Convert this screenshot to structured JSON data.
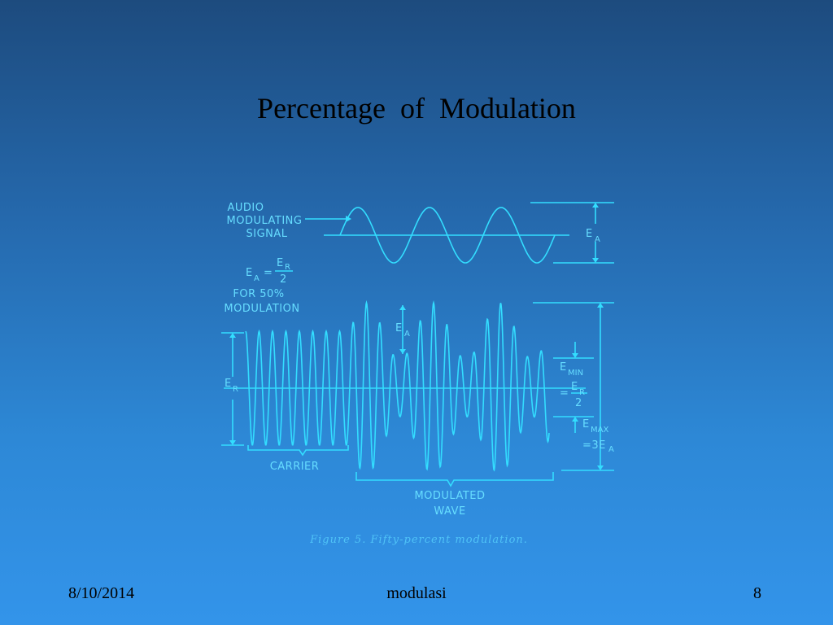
{
  "slide": {
    "title": "Percentage  of  Modulation",
    "footer_date": "8/10/2014",
    "footer_center": "modulasi",
    "slide_number": "8"
  },
  "figure": {
    "audio_label": [
      "AUDIO",
      "MODULATING",
      "SIGNAL"
    ],
    "ea_label": "E",
    "ea_sub": "A",
    "formula_lhs": "E",
    "formula_lhs_sub": "A",
    "formula_eq": "=",
    "formula_num": "E",
    "formula_num_sub": "R",
    "formula_den": "2",
    "for_text": "FOR 50%",
    "modulation_text": "MODULATION",
    "er_label": "E",
    "er_sub": "R",
    "ea_mid_label": "E",
    "ea_mid_sub": "A",
    "emin_label": "E",
    "emin_sub": "MIN",
    "emin_eq": "=",
    "emin_num": "E",
    "emin_num_sub": "R",
    "emin_den": "2",
    "emax_label": "E",
    "emax_sub": "MAX",
    "emax_eq": "=3E",
    "emax_eq_sub": "A",
    "carrier_label": "CARRIER",
    "modulated_label": [
      "MODULATED",
      "WAVE"
    ],
    "caption": "Figure 5.  Fifty-percent modulation.",
    "line_color": "#33ddff"
  }
}
